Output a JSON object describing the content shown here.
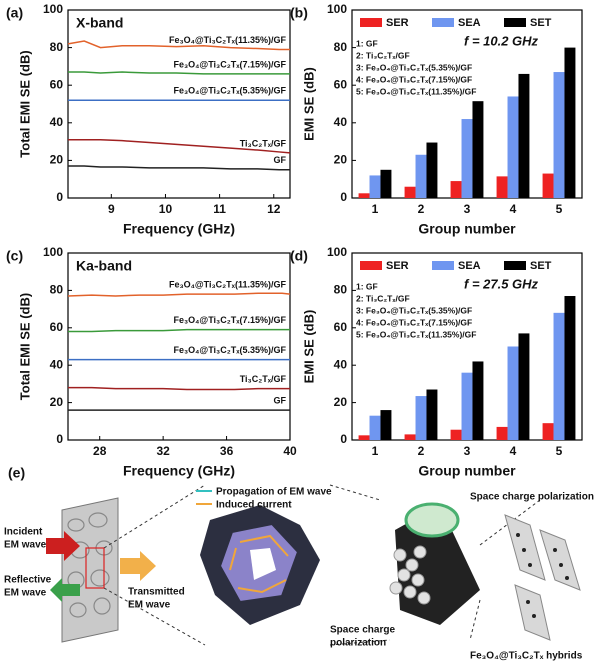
{
  "chart_data": [
    {
      "type": "line",
      "panel_label": "(a)",
      "band_label": "X-band",
      "xlabel": "Frequency (GHz)",
      "ylabel": "Total EMI SE (dB)",
      "x": [
        8.2,
        8.5,
        8.8,
        9.2,
        9.7,
        10.2,
        10.7,
        11.2,
        11.7,
        12.1,
        12.3
      ],
      "xlim": [
        8.2,
        12.3
      ],
      "xticks": [
        9,
        10,
        11,
        12
      ],
      "ylim": [
        0,
        100
      ],
      "yticks": [
        0,
        20,
        40,
        60,
        80,
        100
      ],
      "series": [
        {
          "name": "Fe₃O₄@Ti₃C₂Tₓ(11.35%)/GF",
          "color": "#e2622b",
          "values": [
            82,
            83.5,
            80,
            81,
            81,
            80.5,
            81,
            80,
            79.5,
            79,
            79
          ]
        },
        {
          "name": "Fe₃O₄@Ti₃C₂Tₓ(7.15%)/GF",
          "color": "#3a9a3a",
          "values": [
            67,
            67,
            66.5,
            67,
            66.5,
            66.5,
            66,
            66,
            66,
            66,
            66
          ]
        },
        {
          "name": "Fe₃O₄@Ti₃C₂Tₓ(5.35%)/GF",
          "color": "#3c6fc4",
          "values": [
            52,
            52,
            52,
            52,
            52,
            52,
            52,
            52,
            52,
            52,
            52
          ]
        },
        {
          "name": "Ti₃C₂Tₓ/GF",
          "color": "#a02020",
          "values": [
            31,
            31,
            31,
            30.5,
            29.5,
            28.5,
            27.5,
            26.5,
            25.5,
            24.5,
            24
          ]
        },
        {
          "name": "GF",
          "color": "#222222",
          "values": [
            17,
            17,
            16.5,
            16.5,
            16,
            16,
            16,
            15.5,
            15.5,
            15,
            15
          ]
        }
      ]
    },
    {
      "type": "bar",
      "panel_label": "(b)",
      "xlabel": "Group number",
      "ylabel": "EMI SE (dB)",
      "annotation": "f = 10.2 GHz",
      "categories": [
        "1",
        "2",
        "3",
        "4",
        "5"
      ],
      "ylim": [
        0,
        100
      ],
      "yticks": [
        0,
        20,
        40,
        60,
        80,
        100
      ],
      "group_labels": [
        "1: GF",
        "2: Ti₃C₂Tₓ/GF",
        "3: Fe₃O₄@Ti₃C₂Tₓ(5.35%)/GF",
        "4: Fe₃O₄@Ti₃C₂Tₓ(7.15%)/GF",
        "5: Fe₃O₄@Ti₃C₂Tₓ(11.35%)/GF"
      ],
      "series": [
        {
          "name": "SER",
          "color": "#ee2222",
          "values": [
            2.5,
            6,
            9,
            11.5,
            13
          ]
        },
        {
          "name": "SEA",
          "color": "#6f96f0",
          "values": [
            12,
            23,
            42,
            54,
            67
          ]
        },
        {
          "name": "SET",
          "color": "#000000",
          "values": [
            15,
            29.5,
            51.5,
            66,
            80
          ]
        }
      ]
    },
    {
      "type": "line",
      "panel_label": "(c)",
      "band_label": "Ka-band",
      "xlabel": "Frequency (GHz)",
      "ylabel": "Total EMI SE (dB)",
      "x": [
        26,
        27.5,
        29,
        30.5,
        32,
        33.5,
        35,
        36.5,
        38,
        39.5,
        40
      ],
      "xlim": [
        26,
        40
      ],
      "xticks": [
        28,
        32,
        36,
        40
      ],
      "ylim": [
        0,
        100
      ],
      "yticks": [
        0,
        20,
        40,
        60,
        80,
        100
      ],
      "series": [
        {
          "name": "Fe₃O₄@Ti₃C₂Tₓ(11.35%)/GF",
          "color": "#e2622b",
          "values": [
            77,
            77.5,
            77,
            77.5,
            77.5,
            78,
            78,
            78,
            78.5,
            78.5,
            78
          ]
        },
        {
          "name": "Fe₃O₄@Ti₃C₂Tₓ(7.15%)/GF",
          "color": "#3a9a3a",
          "values": [
            58,
            58,
            58.5,
            58.5,
            58.5,
            59,
            59,
            59,
            59,
            59,
            59
          ]
        },
        {
          "name": "Fe₃O₄@Ti₃C₂Tₓ(5.35%)/GF",
          "color": "#3c6fc4",
          "values": [
            43,
            43,
            43,
            43,
            43,
            43,
            43,
            43,
            43,
            43,
            43
          ]
        },
        {
          "name": "Ti₃C₂Tₓ/GF",
          "color": "#a02020",
          "values": [
            28,
            28,
            27.5,
            27.5,
            27.5,
            27,
            27,
            27,
            27.5,
            27.5,
            27.5
          ]
        },
        {
          "name": "GF",
          "color": "#222222",
          "values": [
            16,
            16,
            16,
            16,
            16,
            16,
            16,
            16,
            16,
            16,
            16
          ]
        }
      ]
    },
    {
      "type": "bar",
      "panel_label": "(d)",
      "xlabel": "Group number",
      "ylabel": "EMI SE (dB)",
      "annotation": "f = 27.5 GHz",
      "categories": [
        "1",
        "2",
        "3",
        "4",
        "5"
      ],
      "ylim": [
        0,
        100
      ],
      "yticks": [
        0,
        20,
        40,
        60,
        80,
        100
      ],
      "group_labels": [
        "1: GF",
        "2: Ti₃C₂Tₓ/GF",
        "3: Fe₃O₄@Ti₃C₂Tₓ(5.35%)/GF",
        "4: Fe₃O₄@Ti₃C₂Tₓ(7.15%)/GF",
        "5: Fe₃O₄@Ti₃C₂Tₓ(11.35%)/GF"
      ],
      "series": [
        {
          "name": "SER",
          "color": "#ee2222",
          "values": [
            2.5,
            3,
            5.5,
            7,
            9
          ]
        },
        {
          "name": "SEA",
          "color": "#6f96f0",
          "values": [
            13,
            23.5,
            36,
            50,
            68
          ]
        },
        {
          "name": "SET",
          "color": "#000000",
          "values": [
            16,
            27,
            42,
            57,
            77
          ]
        }
      ]
    }
  ],
  "schematic": {
    "panel_label": "(e)",
    "incident": [
      "Incident",
      "EM wave"
    ],
    "reflective": [
      "Reflective",
      "EM wave"
    ],
    "transmitted": [
      "Transmitted",
      "EM wave"
    ],
    "propagation": "Propagation of EM wave",
    "induced": "Induced current",
    "polarization_right": "Space charge polarization",
    "polarization_center": [
      "Space charge",
      "polarization"
    ],
    "hybrids": "Fe₃O₄@Ti₃C₂Tₓ hybrids"
  }
}
